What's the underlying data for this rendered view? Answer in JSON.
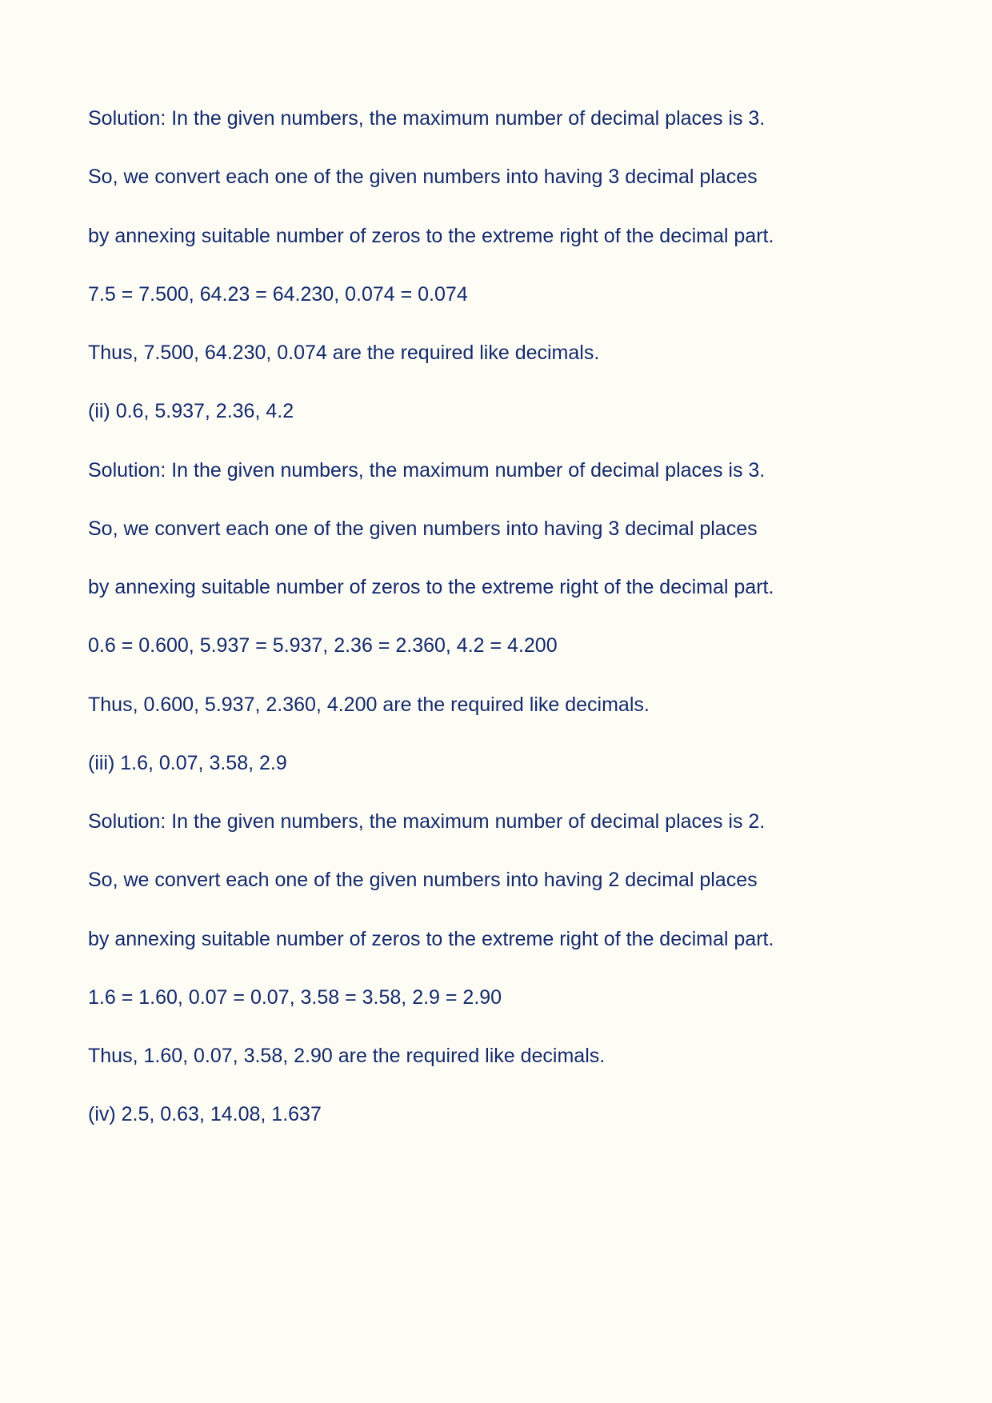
{
  "doc": {
    "text_color": "#142a6b",
    "background_color": "#fdfcf5",
    "font_family": "Arial",
    "font_size_pt": 19,
    "paragraphs": [
      "Solution: In the given numbers, the maximum number of decimal places is 3.",
      "So, we convert each one of the given numbers into having 3 decimal places",
      "by annexing suitable number of zeros to the extreme right of the decimal part.",
      "7.5 = 7.500, 64.23 = 64.230, 0.074 = 0.074",
      "Thus, 7.500, 64.230, 0.074 are the required like decimals.",
      "(ii) 0.6, 5.937, 2.36, 4.2",
      "Solution: In the given numbers, the maximum number of decimal places is 3.",
      "So, we convert each one of the given numbers into having 3 decimal places",
      "by annexing suitable number of zeros to the extreme right of the decimal part.",
      "0.6 = 0.600, 5.937 = 5.937, 2.36 = 2.360, 4.2 = 4.200",
      "Thus, 0.600, 5.937, 2.360, 4.200 are the required like decimals.",
      "(iii) 1.6, 0.07, 3.58, 2.9",
      "Solution: In the given numbers, the maximum number of decimal places is 2.",
      "So, we convert each one of the given numbers into having 2 decimal places",
      "by annexing suitable number of zeros to the extreme right of the decimal part.",
      "1.6 = 1.60, 0.07 = 0.07, 3.58 = 3.58, 2.9 = 2.90",
      "Thus, 1.60, 0.07, 3.58, 2.90 are the required like decimals.",
      "(iv) 2.5, 0.63, 14.08, 1.637"
    ]
  }
}
